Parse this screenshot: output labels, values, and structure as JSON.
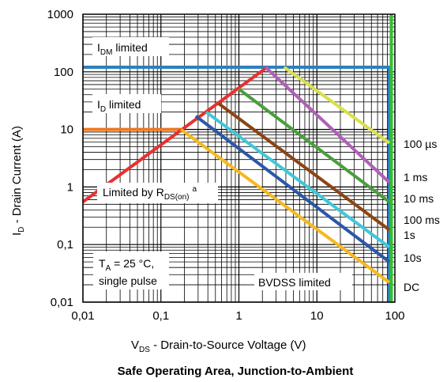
{
  "chart_data": {
    "type": "line",
    "title": "Safe Operating Area, Junction-to-Ambient",
    "xlabel": {
      "main": "V",
      "sub": "DS",
      "rest": " - Drain-to-Source Voltage (V)"
    },
    "ylabel": {
      "main": "I",
      "sub": "D",
      "rest": " - Drain Current (A)"
    },
    "x_scale": "log",
    "y_scale": "log",
    "xlim": [
      0.01,
      100
    ],
    "ylim": [
      0.01,
      1000
    ],
    "x_ticks": [
      {
        "value": 0.01,
        "label": "0,01"
      },
      {
        "value": 0.1,
        "label": "0,1"
      },
      {
        "value": 1,
        "label": "1"
      },
      {
        "value": 10,
        "label": "10"
      },
      {
        "value": 100,
        "label": "100"
      }
    ],
    "y_ticks": [
      {
        "value": 0.01,
        "label": "0,01"
      },
      {
        "value": 0.1,
        "label": "0,1"
      },
      {
        "value": 1,
        "label": "1"
      },
      {
        "value": 10,
        "label": "10"
      },
      {
        "value": 100,
        "label": "100"
      },
      {
        "value": 1000,
        "label": "1000"
      }
    ],
    "grid": true,
    "series": [
      {
        "name": "100 µs",
        "color": "#d8e04a",
        "points": [
          [
            3.8,
            120
          ],
          [
            85,
            5.8
          ]
        ]
      },
      {
        "name": "1 ms",
        "color": "#b060b8",
        "points": [
          [
            2.2,
            120
          ],
          [
            85,
            1.2
          ]
        ]
      },
      {
        "name": "10 ms",
        "color": "#4a9e3c",
        "points": [
          [
            1.0,
            50
          ],
          [
            85,
            0.55
          ]
        ]
      },
      {
        "name": "100 ms",
        "color": "#8b4513",
        "points": [
          [
            0.55,
            28
          ],
          [
            85,
            0.18
          ]
        ]
      },
      {
        "name": "1s",
        "color": "#40c8d8",
        "points": [
          [
            0.38,
            20
          ],
          [
            85,
            0.09
          ]
        ]
      },
      {
        "name": "10s",
        "color": "#2a58a8",
        "points": [
          [
            0.28,
            17
          ],
          [
            85,
            0.05
          ]
        ]
      },
      {
        "name": "DC",
        "color": "#f5b820",
        "points": [
          [
            0.18,
            10
          ],
          [
            85,
            0.022
          ]
        ]
      }
    ],
    "limits": [
      {
        "label": "IDM limited",
        "color": "#2e7fbf",
        "points": [
          [
            0.01,
            120
          ],
          [
            85,
            120
          ],
          [
            85,
            0.01
          ]
        ]
      },
      {
        "label": "ID limited",
        "color": "#f07820",
        "points": [
          [
            0.01,
            10
          ],
          [
            0.18,
            10
          ]
        ]
      },
      {
        "label": "Limited by RDS(on) a",
        "color": "#e83030",
        "points": [
          [
            0.01,
            0.55
          ],
          [
            2.3,
            120
          ]
        ]
      },
      {
        "label": "BVDSS limited",
        "color": "#30c030",
        "points": [
          [
            90,
            1000
          ],
          [
            90,
            0.01
          ]
        ]
      }
    ],
    "annotations": {
      "idm": {
        "main": "I",
        "sub": "DM",
        "rest": " limited"
      },
      "id": {
        "main": "I",
        "sub": "D",
        "rest": " limited"
      },
      "rds": {
        "main": "Limited by R",
        "sub": "DS(on)",
        "sup": "a"
      },
      "ta_line1": {
        "main": "T",
        "sub": "A",
        "rest": " = 25 °C,"
      },
      "ta_line2": "single pulse",
      "bvdss": "BVDSS limited"
    }
  }
}
